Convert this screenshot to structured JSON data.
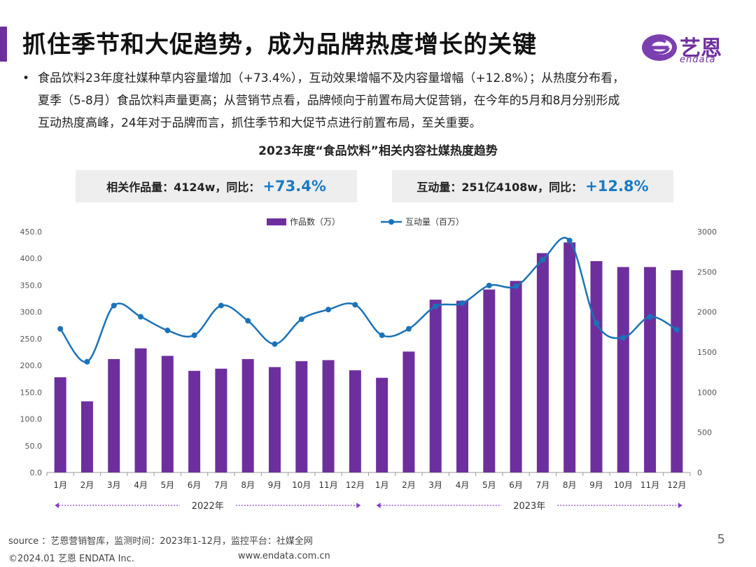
{
  "header": {
    "title": "抓住季节和大促趋势，成为品牌热度增长的关键",
    "logo_cn": "艺恩",
    "logo_en": "endata"
  },
  "bullet": {
    "dot": "•",
    "text": "食品饮料23年度社媒种草内容量增加（+73.4%），互动效果增幅不及内容量增幅（+12.8%）；从热度分布看，夏季（5-8月）食品饮料声量更高；从营销节点看，品牌倾向于前置布局大促营销，在今年的5月和8月分别形成互动热度高峰，24年对于品牌而言，抓住季节和大促节点进行前置布局，至关重要。"
  },
  "stats": {
    "left_label": "相关作品量：4124w，同比：",
    "left_value": "+73.4%",
    "right_label": "互动量：251亿4108w，同比：",
    "right_value": "+12.8%"
  },
  "chart_data": {
    "type": "bar",
    "title": "2023年度“食品饮料”相关内容社媒热度趋势",
    "categories": [
      "1月",
      "2月",
      "3月",
      "4月",
      "5月",
      "6月",
      "7月",
      "8月",
      "9月",
      "10月",
      "11月",
      "12月",
      "1月",
      "2月",
      "3月",
      "4月",
      "5月",
      "6月",
      "7月",
      "8月",
      "9月",
      "10月",
      "11月",
      "12月"
    ],
    "year_groups": [
      {
        "label": "2022年",
        "range": [
          0,
          11
        ]
      },
      {
        "label": "2023年",
        "range": [
          12,
          23
        ]
      }
    ],
    "series": [
      {
        "name": "作品数（万）",
        "type": "bar",
        "axis": "left",
        "color": "#6e2f9e",
        "values": [
          178,
          133,
          212,
          232,
          218,
          190,
          194,
          212,
          197,
          208,
          210,
          191,
          177,
          226,
          323,
          321,
          342,
          358,
          410,
          430,
          395,
          384,
          384,
          378
        ]
      },
      {
        "name": "互动量（百万）",
        "type": "line",
        "axis": "right",
        "color": "#1a73b8",
        "values": [
          1790,
          1380,
          2080,
          1940,
          1770,
          1710,
          2080,
          1890,
          1600,
          1910,
          2030,
          2090,
          1710,
          1790,
          2070,
          2110,
          2330,
          2320,
          2650,
          2890,
          1860,
          1680,
          1940,
          1780
        ]
      }
    ],
    "y_left": {
      "min": 0,
      "max": 450,
      "ticks": [
        "0.0",
        "50.0",
        "100.0",
        "150.0",
        "200.0",
        "250.0",
        "300.0",
        "350.0",
        "400.0",
        "450.0"
      ]
    },
    "y_right": {
      "min": 0,
      "max": 3000,
      "ticks": [
        "0",
        "500",
        "1000",
        "1500",
        "2000",
        "2500",
        "3000"
      ]
    },
    "legend_position": "top-center",
    "grid": false
  },
  "footer": {
    "source": "source ：艺恩营销智库，监测时间：2023年1-12月，监控平台：社媒全网",
    "copyright": "©2024.01  艺恩 ENDATA Inc.",
    "website": "www.endata.com.cn",
    "page_number": "5"
  }
}
